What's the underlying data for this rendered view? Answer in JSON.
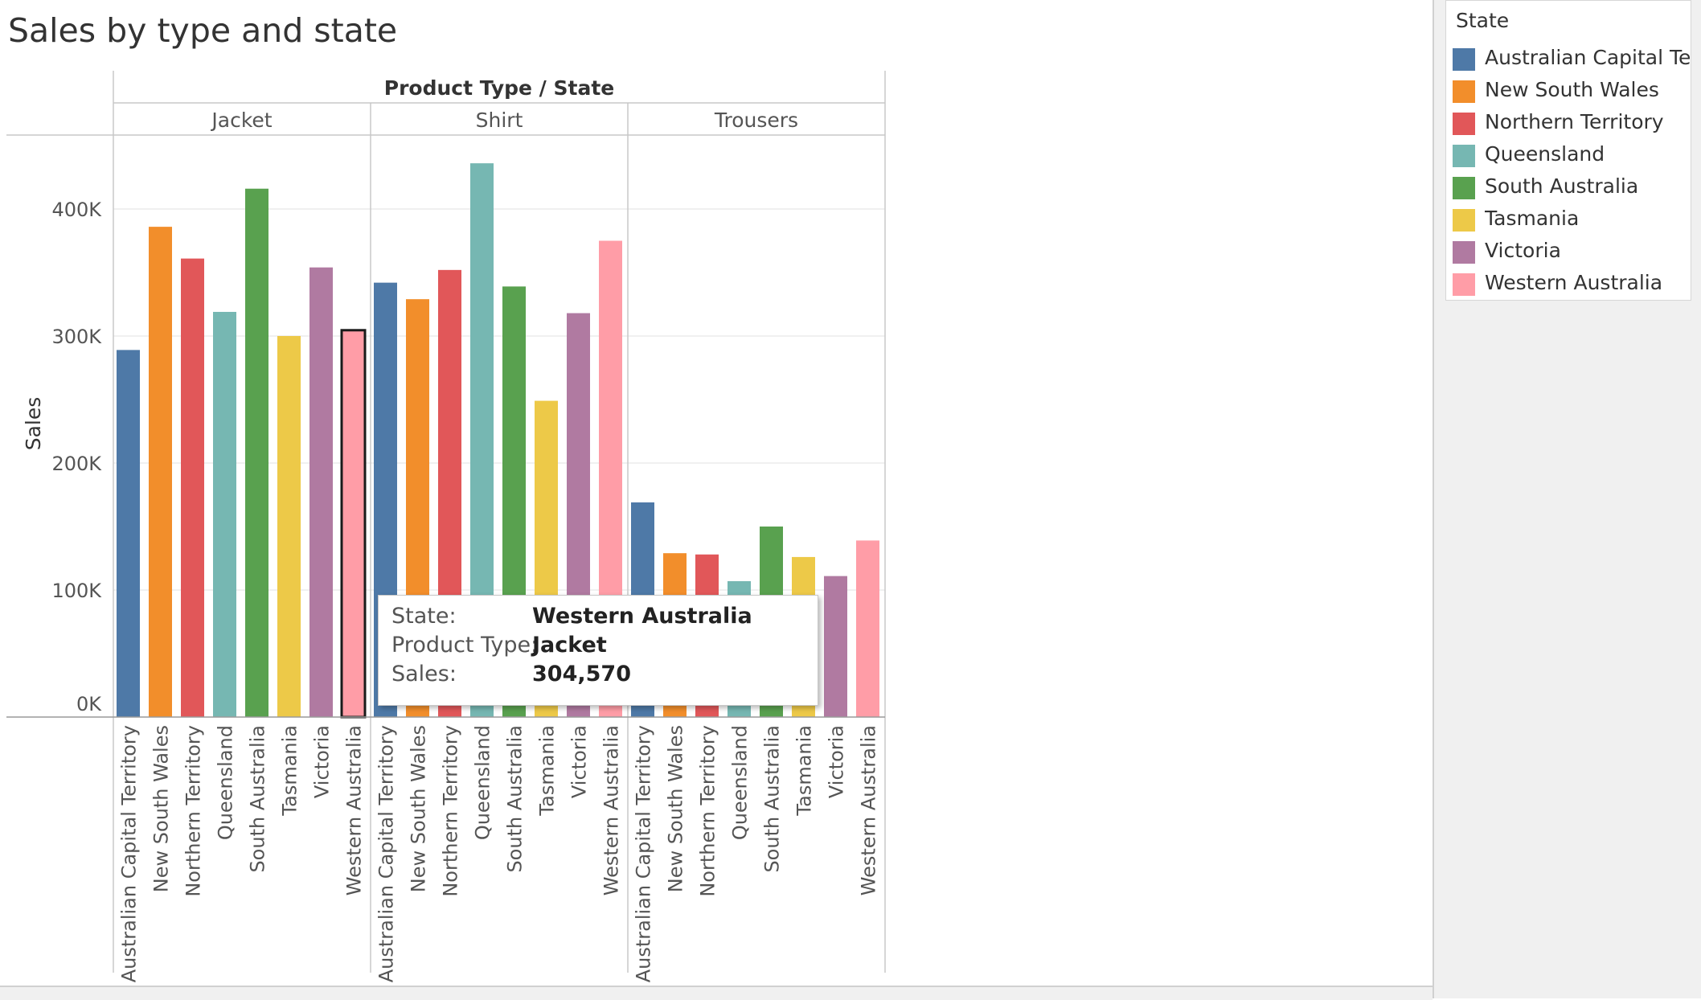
{
  "title": "Sales by type and state",
  "legend": {
    "title": "State",
    "items": [
      {
        "label": "Australian Capital Te..",
        "color": "#4e79a7"
      },
      {
        "label": "New South Wales",
        "color": "#f28e2b"
      },
      {
        "label": "Northern Territory",
        "color": "#e15759"
      },
      {
        "label": "Queensland",
        "color": "#76b7b2"
      },
      {
        "label": "South Australia",
        "color": "#59a14f"
      },
      {
        "label": "Tasmania",
        "color": "#edc948"
      },
      {
        "label": "Victoria",
        "color": "#b07aa1"
      },
      {
        "label": "Western Australia",
        "color": "#ff9da7"
      }
    ]
  },
  "tooltip": {
    "rows": [
      {
        "key": "State:",
        "value": "Western Australia"
      },
      {
        "key": "Product Type:",
        "value": "Jacket"
      },
      {
        "key": "Sales:",
        "value": "304,570"
      }
    ]
  },
  "chart_data": {
    "type": "bar",
    "header": "Product Type  /  State",
    "ylabel": "Sales",
    "ylim": [
      0,
      450000
    ],
    "yticks": [
      {
        "value": 0,
        "label": "0K"
      },
      {
        "value": 100000,
        "label": "100K"
      },
      {
        "value": 200000,
        "label": "200K"
      },
      {
        "value": 300000,
        "label": "300K"
      },
      {
        "value": 400000,
        "label": "400K"
      }
    ],
    "grid": true,
    "legend_position": "right",
    "categories": [
      "Australian Capital Territory",
      "New South Wales",
      "Northern Territory",
      "Queensland",
      "South Australia",
      "Tasmania",
      "Victoria",
      "Western Australia"
    ],
    "colors": [
      "#4e79a7",
      "#f28e2b",
      "#e15759",
      "#76b7b2",
      "#59a14f",
      "#edc948",
      "#b07aa1",
      "#ff9da7"
    ],
    "selected": {
      "panel": 0,
      "index": 7
    },
    "panels": [
      {
        "name": "Jacket",
        "values": [
          289000,
          386000,
          361000,
          319000,
          416000,
          300000,
          354000,
          304570
        ]
      },
      {
        "name": "Shirt",
        "values": [
          342000,
          329000,
          352000,
          436000,
          339000,
          249000,
          318000,
          375000
        ]
      },
      {
        "name": "Trousers",
        "values": [
          169000,
          129000,
          128000,
          107000,
          150000,
          126000,
          111000,
          139000
        ]
      }
    ]
  }
}
